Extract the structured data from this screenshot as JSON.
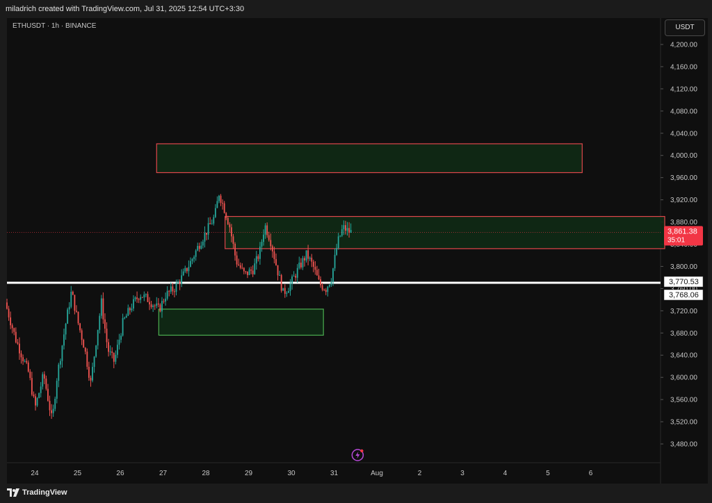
{
  "header": {
    "credit": "miladrich created with TradingView.com, Jul 31, 2025 12:54 UTC+3:30"
  },
  "symbol_line": "ETHUSDT · 1h · BINANCE",
  "currency": "USDT",
  "footer": {
    "brand": "TradingView"
  },
  "chart_data": {
    "type": "candlestick",
    "symbol": "ETHUSDT",
    "interval": "1h",
    "exchange": "BINANCE",
    "ylim": [
      3460,
      4230
    ],
    "y_ticks": [
      4200,
      4160,
      4120,
      4080,
      4040,
      4000,
      3960,
      3920,
      3880,
      3840,
      3800,
      3760,
      3720,
      3680,
      3640,
      3600,
      3560,
      3520,
      3480
    ],
    "y_tick_labels": [
      "4,200.00",
      "4,160.00",
      "4,120.00",
      "4,080.00",
      "4,040.00",
      "4,000.00",
      "3,960.00",
      "3,920.00",
      "3,880.00",
      "3,840.00",
      "3,800.00",
      "3,760.00",
      "3,720.00",
      "3,680.00",
      "3,640.00",
      "3,600.00",
      "3,560.00",
      "3,520.00",
      "3,480.00"
    ],
    "x_tick_labels": [
      "24",
      "25",
      "26",
      "27",
      "28",
      "29",
      "30",
      "31",
      "Aug",
      "2",
      "3",
      "4",
      "5",
      "6"
    ],
    "x_tick_days": [
      24,
      25,
      26,
      27,
      28,
      29,
      30,
      31,
      32,
      33,
      34,
      35,
      36,
      37
    ],
    "x_range_days": [
      23.35,
      38.6
    ],
    "current_price": {
      "value": 3861.38,
      "label": "3,861.38",
      "countdown": "35:01",
      "color": "#f23645"
    },
    "support_line": {
      "value": 3770.53,
      "label": "3,770.53"
    },
    "secondary_level": {
      "value": 3768.06,
      "label": "3,768.06"
    },
    "zones": [
      {
        "name": "upper-supply-zone",
        "x_from_day": 26.85,
        "x_to_day": 36.8,
        "low": 3969,
        "high": 4021,
        "border": "#e0464b",
        "fill": "#0f2a15"
      },
      {
        "name": "current-range-zone",
        "x_from_day": 28.45,
        "x_to_day": 40,
        "low": 3832,
        "high": 3890,
        "border": "#e0464b",
        "fill": "#0f2a15"
      },
      {
        "name": "demand-zone",
        "x_from_day": 26.9,
        "x_to_day": 30.75,
        "low": 3676,
        "high": 3723,
        "border": "#4caf50",
        "fill": "#0f2a15"
      }
    ],
    "colors": {
      "up": "#26a69a",
      "down": "#ef5350",
      "background": "#0f0f0f"
    },
    "price_path": [
      [
        23.35,
        3735
      ],
      [
        23.6,
        3668
      ],
      [
        23.9,
        3608
      ],
      [
        24.05,
        3545
      ],
      [
        24.25,
        3605
      ],
      [
        24.45,
        3520
      ],
      [
        24.55,
        3595
      ],
      [
        24.75,
        3690
      ],
      [
        24.9,
        3755
      ],
      [
        25.05,
        3700
      ],
      [
        25.2,
        3655
      ],
      [
        25.35,
        3590
      ],
      [
        25.5,
        3680
      ],
      [
        25.6,
        3735
      ],
      [
        25.75,
        3650
      ],
      [
        25.9,
        3628
      ],
      [
        26.1,
        3698
      ],
      [
        26.3,
        3728
      ],
      [
        26.5,
        3750
      ],
      [
        26.7,
        3740
      ],
      [
        26.95,
        3722
      ],
      [
        27.1,
        3748
      ],
      [
        27.3,
        3760
      ],
      [
        27.5,
        3782
      ],
      [
        27.7,
        3810
      ],
      [
        27.9,
        3842
      ],
      [
        28.05,
        3862
      ],
      [
        28.25,
        3890
      ],
      [
        28.35,
        3932
      ],
      [
        28.5,
        3898
      ],
      [
        28.6,
        3872
      ],
      [
        28.75,
        3810
      ],
      [
        28.95,
        3785
      ],
      [
        29.15,
        3795
      ],
      [
        29.3,
        3825
      ],
      [
        29.42,
        3875
      ],
      [
        29.55,
        3848
      ],
      [
        29.72,
        3792
      ],
      [
        29.85,
        3752
      ],
      [
        30.0,
        3765
      ],
      [
        30.2,
        3795
      ],
      [
        30.4,
        3822
      ],
      [
        30.55,
        3800
      ],
      [
        30.7,
        3768
      ],
      [
        30.85,
        3760
      ],
      [
        30.98,
        3780
      ],
      [
        31.12,
        3842
      ],
      [
        31.25,
        3870
      ],
      [
        31.4,
        3862
      ]
    ]
  }
}
